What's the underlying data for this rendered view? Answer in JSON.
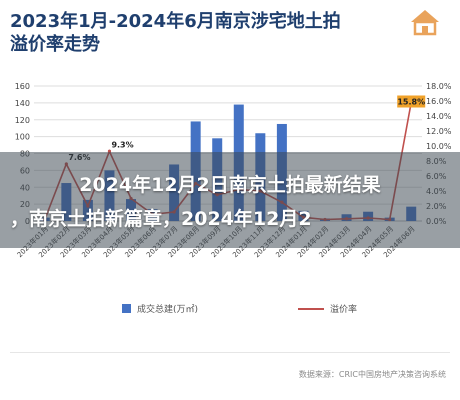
{
  "title_line1": "2023年1月-2024年6月南京涉宅地土拍",
  "title_line2": "溢价率走势",
  "logo_icon": "house-logo-icon",
  "overlay": {
    "line1": "2024年12月2日南京土拍最新结果",
    "line2": "，南京土拍新篇章，2024年12月2"
  },
  "source": "数据来源：CRIC中国房地产决策咨询系统",
  "colors": {
    "bar": "#4472c4",
    "line": "#c0504d",
    "title": "#1f3f6e"
  },
  "chart_data": {
    "type": "bar",
    "combo": "bar+line",
    "title": "2023年1月-2024年6月南京涉宅地土拍溢价率走势",
    "categories": [
      "2023年01月",
      "2023年02月",
      "2023年03月",
      "2023年04月",
      "2023年05月",
      "2023年06月",
      "2023年07月",
      "2023年08月",
      "2023年09月",
      "2023年10月",
      "2023年11月",
      "2023年12月",
      "2024年01月",
      "2024年02月",
      "2024年03月",
      "2024年04月",
      "2024年05月",
      "2024年06月"
    ],
    "series": [
      {
        "name": "成交总建(万㎡)",
        "type": "bar",
        "axis": "left",
        "values": [
          4,
          45,
          25,
          60,
          26,
          14,
          67,
          118,
          98,
          138,
          104,
          115,
          12,
          3,
          8,
          11,
          4,
          17
        ]
      },
      {
        "name": "溢价率",
        "type": "line",
        "axis": "right",
        "values": [
          0.2,
          7.6,
          2.0,
          9.3,
          3.0,
          0.9,
          1.2,
          5.0,
          3.5,
          4.2,
          4.0,
          2.5,
          0.5,
          0.2,
          0.3,
          0.4,
          0.2,
          15.8
        ]
      }
    ],
    "annotations": [
      "7.6%",
      "9.3%",
      "15.8%"
    ],
    "ylim_left": [
      0,
      160
    ],
    "yticks_left": [
      "0",
      "20",
      "40",
      "60",
      "80",
      "100",
      "120",
      "140",
      "160"
    ],
    "ylim_right": [
      0,
      18
    ],
    "yticks_right": [
      "0.0%",
      "2.0%",
      "4.0%",
      "6.0%",
      "8.0%",
      "10.0%",
      "12.0%",
      "14.0%",
      "16.0%",
      "18.0%"
    ],
    "grid": true,
    "legend_position": "bottom"
  }
}
